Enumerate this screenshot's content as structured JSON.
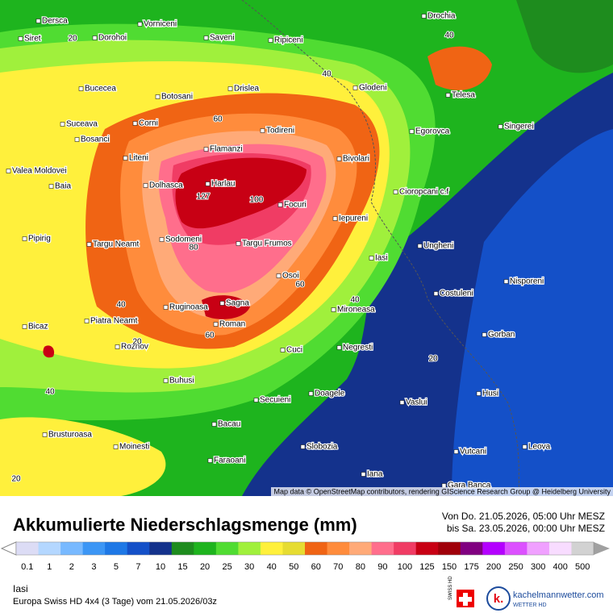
{
  "header": {
    "title": "Akkumulierte Niederschlagsmenge (mm)",
    "period_from": "Von Do. 21.05.2026, 05:00 Uhr MESZ",
    "period_to": "bis Sa. 23.05.2026, 00:00 Uhr MESZ"
  },
  "map": {
    "places": [
      "Dersca",
      "Siret",
      "Dorohoi",
      "Vorniceni",
      "Saveni",
      "Ripiceni",
      "Drochia",
      "Bucecea",
      "Botosani",
      "Drislea",
      "Glodeni",
      "Telesa",
      "Suceava",
      "Corni",
      "Todireni",
      "Egorovca",
      "Singerei",
      "Bosanci",
      "Flamanzi",
      "Liteni",
      "Bivolari",
      "Valea Moldovei",
      "Dolhasca",
      "Harlau",
      "Baia",
      "Focuri",
      "Cioropcani c.f",
      "Iepureni",
      "Pipirig",
      "Sodomeni",
      "Targu Neamt",
      "Targu Frumos",
      "Ungheni",
      "Iasi",
      "Osoi",
      "Nisporeni",
      "Costuleni",
      "Sagna",
      "Ruginoasa",
      "Mironeasa",
      "Piatra Neamt",
      "Roman",
      "Bicaz",
      "Gorban",
      "Roznov",
      "Cuci",
      "Negresti",
      "Buhusi",
      "Doagele",
      "Secuieni",
      "Vaslui",
      "Husi",
      "Bacau",
      "Brusturoasa",
      "Moinesti",
      "Slobozia",
      "Leova",
      "Vutcani",
      "Faraoani",
      "Iana",
      "Gara Banca"
    ],
    "contour_labels": [
      20,
      40,
      40,
      60,
      100,
      127,
      80,
      60,
      40,
      40,
      60,
      20,
      20,
      40,
      20
    ],
    "attribution": "Map data © OpenStreetMap contributors, rendering GIScience Research Group @ Heidelberg University"
  },
  "legend": {
    "values": [
      0.1,
      1,
      2,
      3,
      5,
      7,
      10,
      15,
      20,
      25,
      30,
      40,
      50,
      60,
      70,
      80,
      90,
      100,
      125,
      150,
      175,
      200,
      250,
      300,
      400,
      500
    ],
    "colors": [
      "#dcdcf5",
      "#b4d7ff",
      "#78b9ff",
      "#3c96f5",
      "#1e78e6",
      "#1450c8",
      "#14328c",
      "#1e8c1e",
      "#1eb41e",
      "#50dc32",
      "#a0f03c",
      "#fff03c",
      "#e6dc32",
      "#f06414",
      "#ff8c3c",
      "#ffaa78",
      "#ff6e8c",
      "#f03c64",
      "#c80014",
      "#a0000a",
      "#800080",
      "#b400ff",
      "#dc50ff",
      "#f0a0ff",
      "#f8dcff",
      "#d2d2d2"
    ]
  },
  "footer": {
    "location": "Iasi",
    "model": "Europa Swiss HD 4x4 (3 Tage) vom 21.05.2026/03z",
    "swiss_hd": "SWISS HD",
    "logo_letter": "k.",
    "brand": "kachelmannwetter.com",
    "brand_sub": "WETTER HD"
  }
}
